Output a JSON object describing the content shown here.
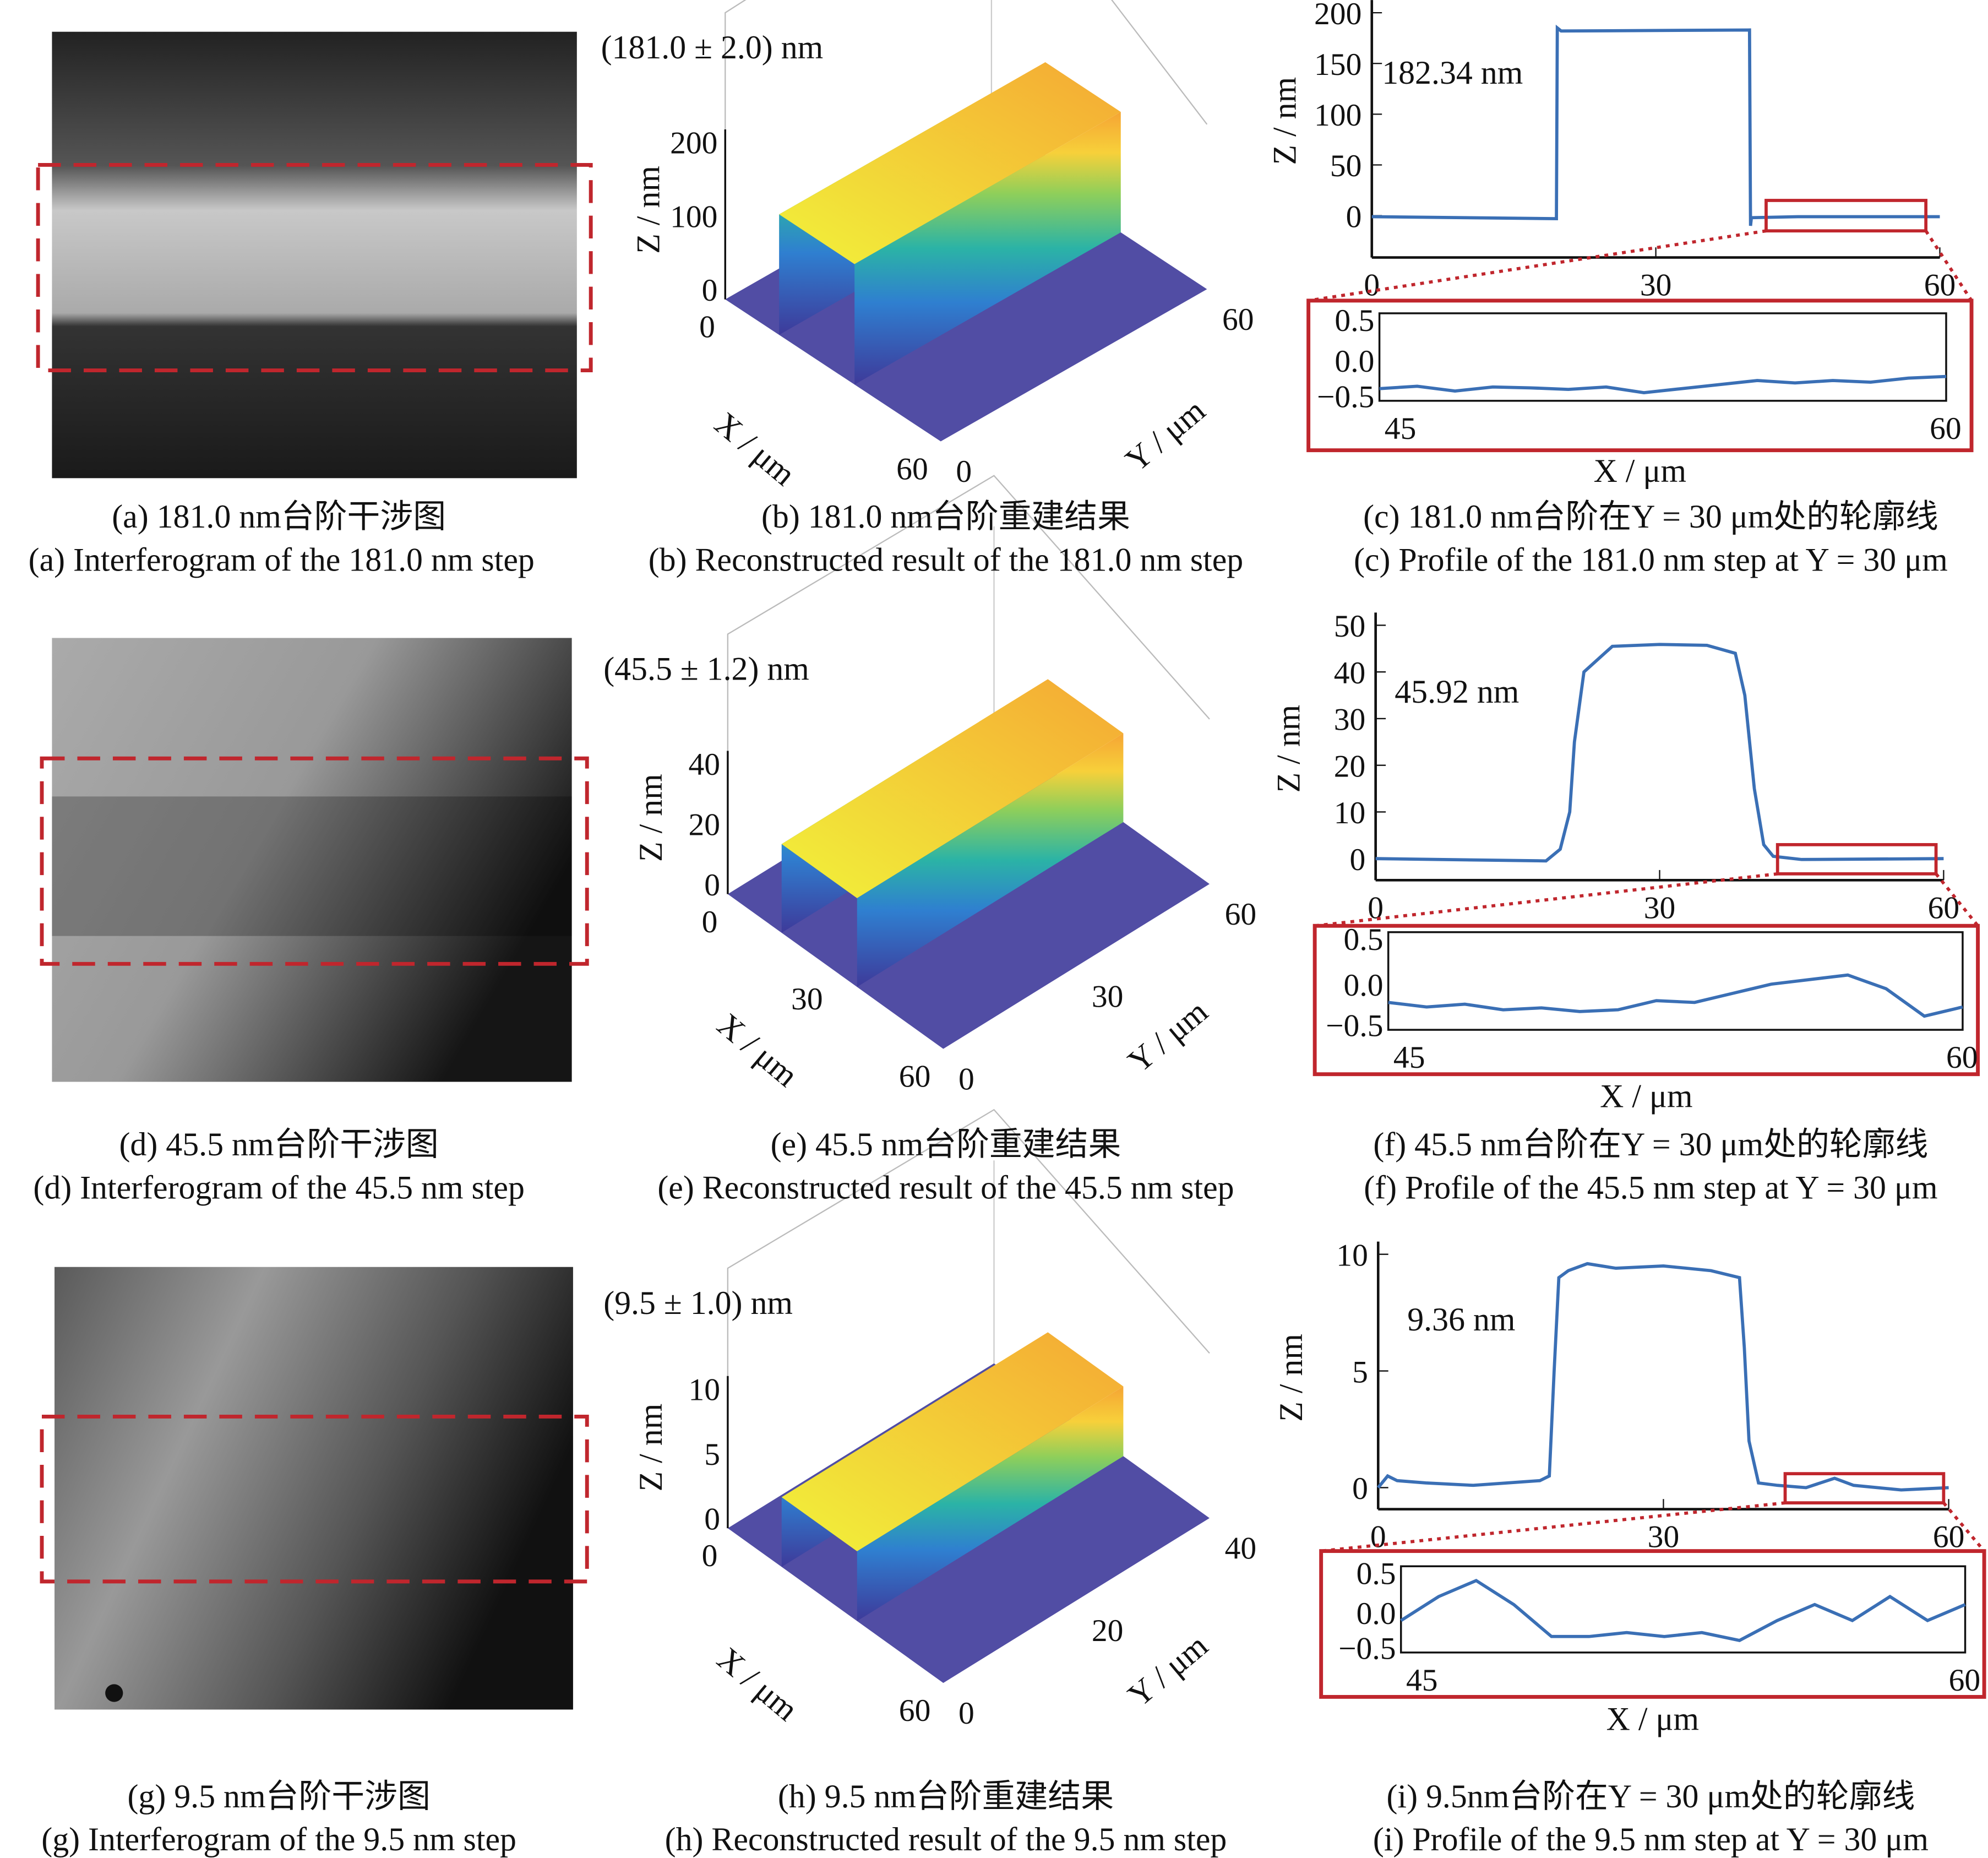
{
  "captions": {
    "a_cn": "(a) 181.0 nm台阶干涉图",
    "a_en": "(a) Interferogram of the 181.0 nm step",
    "b_cn": "(b) 181.0 nm台阶重建结果",
    "b_en": "(b) Reconstructed result of the 181.0 nm step",
    "c_cn": "(c) 181.0 nm台阶在Y = 30 μm处的轮廓线",
    "c_en": "(c) Profile of the 181.0 nm step at Y = 30 μm",
    "d_cn": "(d) 45.5 nm台阶干涉图",
    "d_en": "(d)  Interferogram of the 45.5 nm step",
    "e_cn": "(e) 45.5 nm台阶重建结果",
    "e_en": "(e) Reconstructed result of the 45.5 nm step",
    "f_cn": "(f) 45.5 nm台阶在Y = 30 μm处的轮廓线",
    "f_en": "(f) Profile of the 45.5 nm step at Y = 30 μm",
    "g_cn": "(g) 9.5 nm台阶干涉图",
    "g_en": "(g) Interferogram of the 9.5 nm step",
    "h_cn": "(h) 9.5 nm台阶重建结果",
    "h_en": "(h) Reconstructed result of the 9.5 nm step",
    "i_cn": "(i) 9.5nm台阶在Y = 30 μm处的轮廓线",
    "i_en": "(i) Profile of the 9.5 nm step at Y = 30 μm"
  },
  "colors": {
    "line": "#3a6fb5",
    "highlight": "#c0262d",
    "surface_low": "#3e3a9a",
    "surface_high": "#f7c52a"
  },
  "chart_data": [
    {
      "type": "surface",
      "panel": "b",
      "annotation": "(181.0 ± 2.0) nm",
      "zlabel": "Z / nm",
      "xlabel": "X / μm",
      "ylabel": "Y / μm",
      "z_ticks": [
        "200",
        "100",
        "0"
      ],
      "x_ticks": [
        "0",
        "60"
      ],
      "y_ticks": [
        "0",
        "60"
      ]
    },
    {
      "type": "line",
      "panel": "c",
      "annotation": "182.34 nm",
      "ylabel": "Z / nm",
      "xlabel": "X / μm",
      "xlim": [
        0,
        60
      ],
      "ylim": [
        0,
        200
      ],
      "x_ticks": [
        "0",
        "30",
        "60"
      ],
      "y_ticks": [
        "200",
        "150",
        "100",
        "50",
        "0"
      ],
      "x": [
        0,
        19.5,
        19.6,
        20,
        39.9,
        40,
        40.1,
        45,
        60
      ],
      "y": [
        -1,
        -3,
        185,
        182,
        183,
        -10,
        -2,
        -1,
        -1
      ],
      "inset": {
        "xlim": [
          45,
          60
        ],
        "ylim": [
          -0.5,
          0.5
        ],
        "x_ticks": [
          "45",
          "60"
        ],
        "y_ticks": [
          "0.5",
          "0.0",
          "−0.5"
        ],
        "x": [
          45,
          46,
          47,
          48,
          49,
          50,
          51,
          52,
          53,
          54,
          55,
          56,
          57,
          58,
          59,
          60
        ],
        "y": [
          -0.35,
          -0.32,
          -0.38,
          -0.33,
          -0.34,
          -0.36,
          -0.33,
          -0.4,
          -0.35,
          -0.3,
          -0.25,
          -0.28,
          -0.25,
          -0.27,
          -0.22,
          -0.2
        ]
      }
    },
    {
      "type": "surface",
      "panel": "e",
      "annotation": "(45.5 ± 1.2) nm",
      "zlabel": "Z / nm",
      "xlabel": "X / μm",
      "ylabel": "Y / μm",
      "z_ticks": [
        "40",
        "20",
        "0"
      ],
      "x_ticks": [
        "0",
        "30",
        "60"
      ],
      "y_ticks": [
        "0",
        "30",
        "60"
      ]
    },
    {
      "type": "line",
      "panel": "f",
      "annotation": "45.92 nm",
      "ylabel": "Z / nm",
      "xlabel": "X / μm",
      "xlim": [
        0,
        60
      ],
      "ylim": [
        0,
        50
      ],
      "x_ticks": [
        "0",
        "30",
        "60"
      ],
      "y_ticks": [
        "50",
        "40",
        "30",
        "20",
        "10",
        "0"
      ],
      "x": [
        0,
        18,
        19.5,
        20.5,
        21,
        22,
        25,
        30,
        35,
        38,
        39,
        40,
        41,
        42,
        45,
        60
      ],
      "y": [
        0,
        -0.5,
        2,
        10,
        25,
        40,
        45.5,
        45.9,
        45.7,
        44,
        35,
        15,
        3,
        0.5,
        -0.2,
        0
      ],
      "inset": {
        "xlim": [
          45,
          60
        ],
        "ylim": [
          -0.5,
          0.5
        ],
        "x_ticks": [
          "45",
          "60"
        ],
        "y_ticks": [
          "0.5",
          "0.0",
          "−0.5"
        ],
        "x": [
          45,
          46,
          47,
          48,
          49,
          50,
          51,
          52,
          53,
          54,
          55,
          56,
          57,
          58,
          59,
          60
        ],
        "y": [
          -0.2,
          -0.25,
          -0.22,
          -0.28,
          -0.26,
          -0.3,
          -0.28,
          -0.18,
          -0.2,
          -0.1,
          0.0,
          0.05,
          0.1,
          -0.05,
          -0.35,
          -0.25
        ]
      }
    },
    {
      "type": "surface",
      "panel": "h",
      "annotation": "(9.5 ± 1.0) nm",
      "zlabel": "Z / nm",
      "xlabel": "X / μm",
      "ylabel": "Y / μm",
      "z_ticks": [
        "10",
        "5",
        "0"
      ],
      "x_ticks": [
        "0",
        "60"
      ],
      "y_ticks": [
        "0",
        "20",
        "40"
      ]
    },
    {
      "type": "line",
      "panel": "i",
      "annotation": "9.36 nm",
      "ylabel": "Z / nm",
      "xlabel": "X / μm",
      "xlim": [
        0,
        60
      ],
      "ylim": [
        0,
        10
      ],
      "x_ticks": [
        "0",
        "30",
        "60"
      ],
      "y_ticks": [
        "10",
        "5",
        "0"
      ],
      "x": [
        0,
        1,
        2,
        5,
        10,
        17,
        18,
        18.5,
        19,
        20,
        22,
        25,
        30,
        35,
        38,
        38.5,
        39,
        40,
        42,
        45,
        48,
        50,
        55,
        60
      ],
      "y": [
        0,
        0.5,
        0.3,
        0.2,
        0.1,
        0.3,
        0.5,
        5,
        9,
        9.3,
        9.6,
        9.4,
        9.5,
        9.3,
        9,
        6,
        2,
        0.2,
        0.1,
        0,
        0.4,
        0.1,
        -0.1,
        0
      ],
      "inset": {
        "xlim": [
          45,
          60
        ],
        "ylim": [
          -0.5,
          0.5
        ],
        "x_ticks": [
          "45",
          "60"
        ],
        "y_ticks": [
          "0.5",
          "0.0",
          "−0.5"
        ],
        "x": [
          45,
          46,
          47,
          48,
          49,
          50,
          51,
          52,
          53,
          54,
          55,
          56,
          57,
          58,
          59,
          60
        ],
        "y": [
          -0.1,
          0.2,
          0.4,
          0.1,
          -0.3,
          -0.3,
          -0.25,
          -0.3,
          -0.25,
          -0.35,
          -0.1,
          0.1,
          -0.1,
          0.2,
          -0.1,
          0.1
        ]
      }
    }
  ]
}
